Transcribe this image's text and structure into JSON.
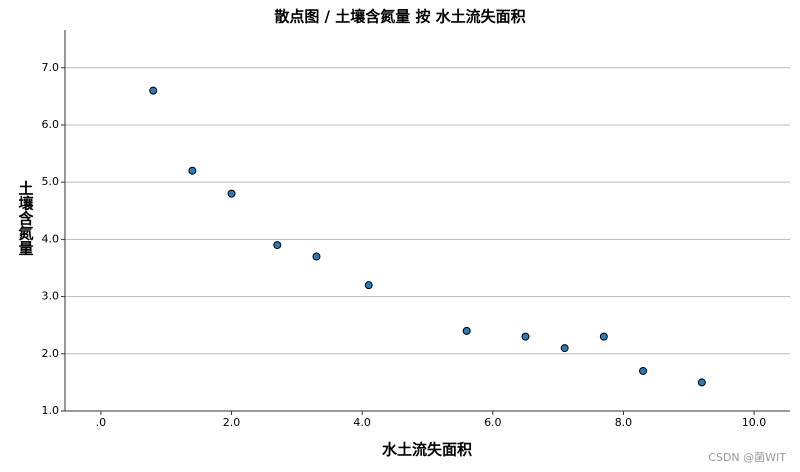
{
  "chart_data": {
    "type": "scatter",
    "title": "散点图 / 土壤含氮量 按 水土流失面积",
    "x_label": "水土流失面积",
    "y_label": "土壤含氮量",
    "watermark": "CSDN @菌WIT",
    "x": [
      0.8,
      1.4,
      2.0,
      2.7,
      3.3,
      4.1,
      5.6,
      6.5,
      7.1,
      7.7,
      8.3,
      9.2
    ],
    "values": [
      6.6,
      5.2,
      4.8,
      3.9,
      3.7,
      3.2,
      2.4,
      2.3,
      2.1,
      2.3,
      1.7,
      1.5
    ],
    "color": "#2b7bba",
    "xlim": [
      -0.55,
      10.55
    ],
    "ylim": [
      1,
      7.66
    ],
    "xticks": [
      {
        "value": 0,
        "label": ".0"
      },
      {
        "value": 2,
        "label": "2.0"
      },
      {
        "value": 4,
        "label": "4.0"
      },
      {
        "value": 6,
        "label": "6.0"
      },
      {
        "value": 8,
        "label": "8.0"
      },
      {
        "value": 10,
        "label": "10.0"
      }
    ],
    "yticks": [
      {
        "value": 1,
        "label": "1.0"
      },
      {
        "value": 2,
        "label": "2.0"
      },
      {
        "value": 3,
        "label": "3.0"
      },
      {
        "value": 4,
        "label": "4.0"
      },
      {
        "value": 5,
        "label": "5.0"
      },
      {
        "value": 6,
        "label": "6.0"
      },
      {
        "value": 7,
        "label": "7.0"
      }
    ],
    "grid": true
  }
}
